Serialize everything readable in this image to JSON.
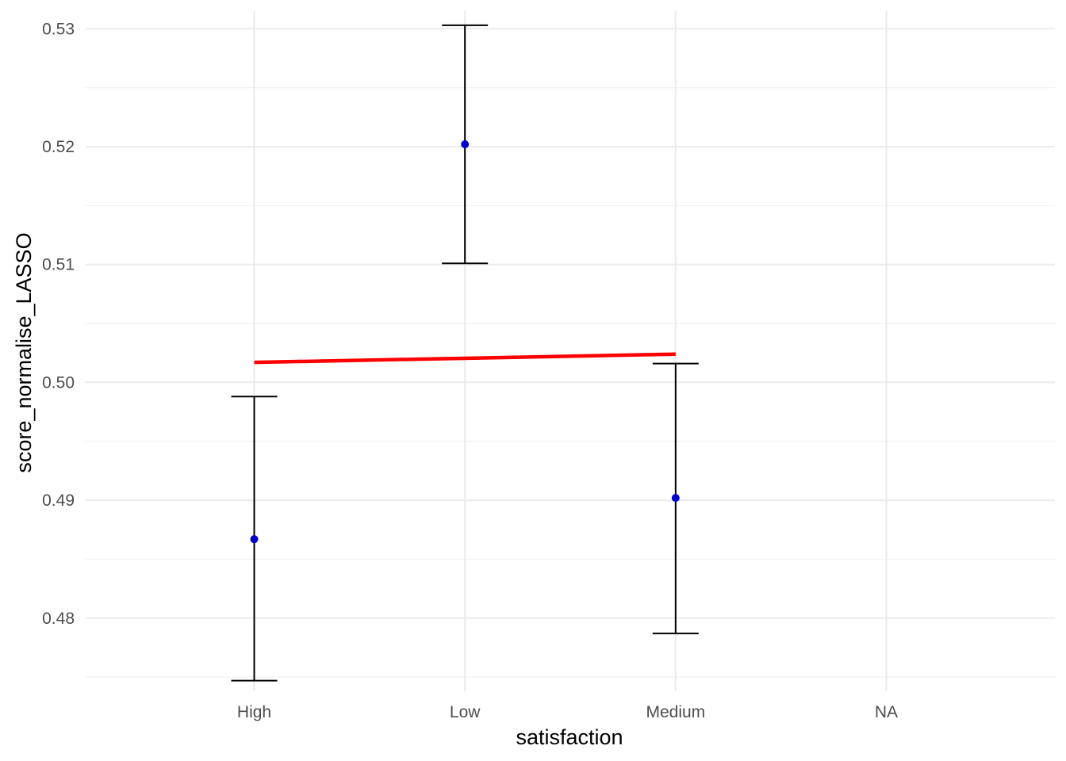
{
  "chart_data": {
    "type": "scatter",
    "xlabel": "satisfaction",
    "ylabel": "score_normalise_LASSO",
    "categories": [
      "High",
      "Low",
      "Medium",
      "NA"
    ],
    "y_ticks": [
      "0.48",
      "0.49",
      "0.50",
      "0.51",
      "0.52",
      "0.53"
    ],
    "ylim": [
      0.4738,
      0.5315
    ],
    "grid": true,
    "series": [
      {
        "marker": "point-with-errorbar",
        "color": "#0000cc",
        "points": [
          {
            "x": "High",
            "y": 0.4867,
            "ymin": 0.4747,
            "ymax": 0.4988
          },
          {
            "x": "Low",
            "y": 0.5202,
            "ymin": 0.5101,
            "ymax": 0.5303
          },
          {
            "x": "Medium",
            "y": 0.4902,
            "ymin": 0.4787,
            "ymax": 0.5016
          }
        ]
      },
      {
        "marker": "line",
        "color": "#ff0000",
        "points": [
          {
            "x": "High",
            "y": 0.5017
          },
          {
            "x": "Medium",
            "y": 0.5024
          }
        ]
      }
    ]
  }
}
